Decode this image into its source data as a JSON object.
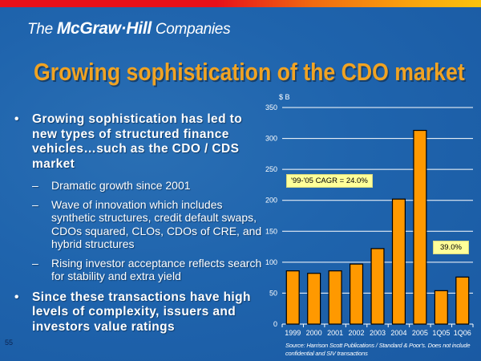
{
  "header": {
    "logo_prefix": "The ",
    "logo_brand": "McGraw·Hill",
    "logo_suffix": " Companies"
  },
  "slide": {
    "title": "Growing sophistication of the CDO market",
    "page_number": "55",
    "bullets": [
      {
        "text": "Growing sophistication has led to new types of structured finance vehicles…such as the CDO / CDS market",
        "sub": [
          "Dramatic growth since 2001",
          "Wave of innovation which includes synthetic structures, credit default swaps, CDOs squared, CLOs, CDOs of CRE, and hybrid structures",
          "Rising investor acceptance reflects search for stability and extra yield"
        ]
      },
      {
        "text": "Since these transactions have high levels of complexity, issuers and investors value ratings",
        "sub": []
      }
    ],
    "bullet_glyph": "•",
    "dash_glyph": "–"
  },
  "chart_data": {
    "type": "bar",
    "title": "",
    "xlabel": "",
    "ylabel": "$ B",
    "categories": [
      "1999",
      "2000",
      "2001",
      "2002",
      "2003",
      "2004",
      "2005",
      "1Q05",
      "1Q06"
    ],
    "values": [
      86,
      82,
      86,
      97,
      122,
      202,
      313,
      54,
      76
    ],
    "ylim": [
      0,
      350
    ],
    "yticks": [
      0,
      50,
      100,
      150,
      200,
      250,
      300,
      350
    ],
    "grid": true,
    "bar_color": "#ff9900",
    "annotations": [
      {
        "text": "'99-'05 CAGR = 24.0%"
      },
      {
        "text": "39.0%"
      }
    ],
    "source": "Source: Harrison Scott Publications / Standard & Poor's. Does not include confidential and SIV transactions"
  }
}
